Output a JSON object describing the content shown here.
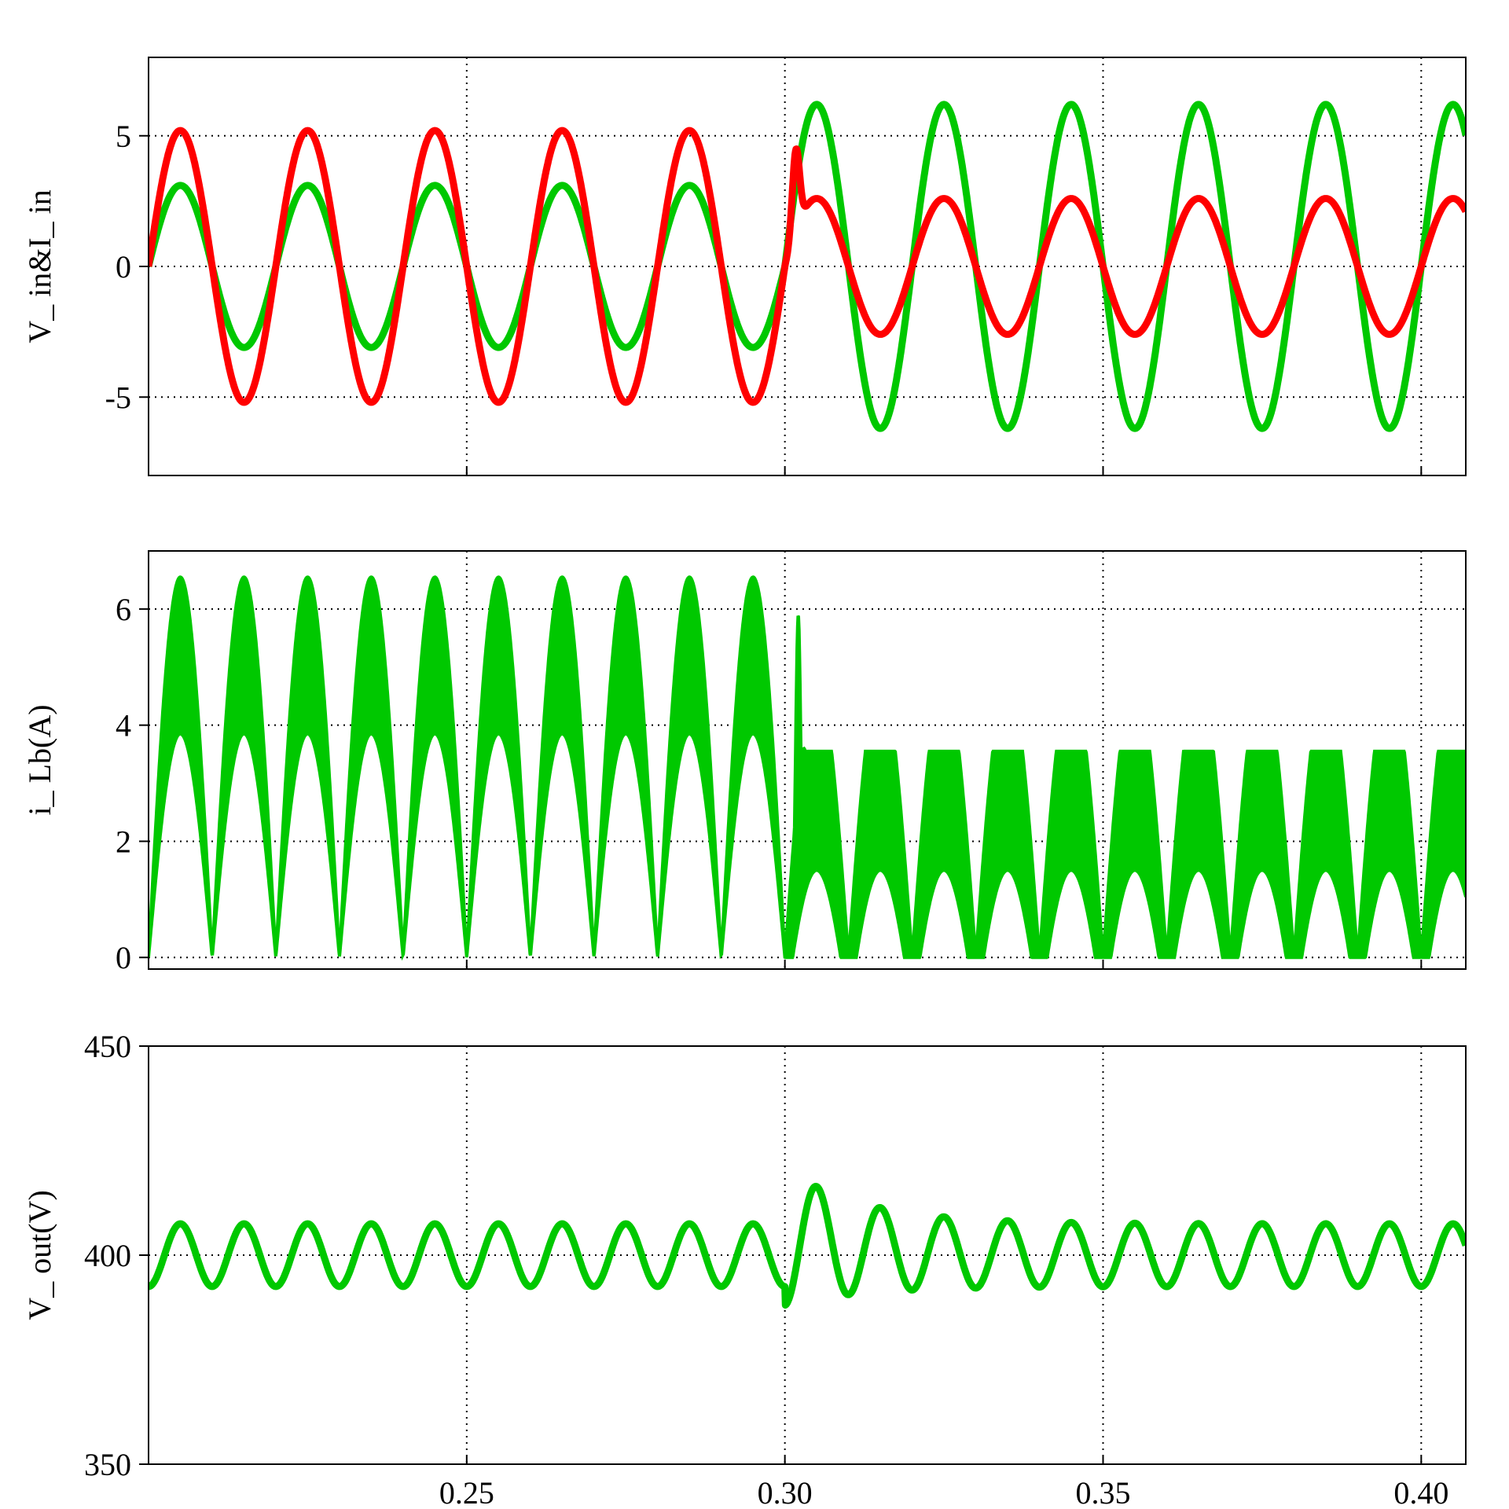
{
  "colors": {
    "green": "#00c800",
    "red": "#ff0000",
    "grid": "#000000",
    "axis": "#000000"
  },
  "x_axis": {
    "xlim": [
      0.2,
      0.407
    ],
    "ticks": [
      0.25,
      0.3,
      0.35,
      0.4
    ],
    "tick_labels": [
      "0.25",
      "0.30",
      "0.35",
      "0.40"
    ]
  },
  "chart_data": [
    {
      "type": "line",
      "ylabel": "V_ in&I_ in",
      "ylim": [
        -8,
        8
      ],
      "yticks": [
        -5,
        0,
        5
      ],
      "ytick_labels": [
        "-5",
        "0",
        "5"
      ],
      "grid": true,
      "series": [
        {
          "color_key": "green",
          "frequency_hz": 50,
          "segments": [
            {
              "t_start": 0.2,
              "t_end": 0.3,
              "amplitude": 3.1
            },
            {
              "t_start": 0.3,
              "t_end": 0.407,
              "amplitude": 6.2
            }
          ]
        },
        {
          "color_key": "red",
          "frequency_hz": 50,
          "segments": [
            {
              "t_start": 0.2,
              "t_end": 0.3,
              "amplitude": 5.2
            },
            {
              "t_start": 0.3,
              "t_end": 0.407,
              "amplitude": 2.6
            }
          ],
          "transient_peak": {
            "t": 0.3018,
            "value": 4.5
          }
        }
      ]
    },
    {
      "type": "area",
      "ylabel": "i_ Lb(A)",
      "ylim": [
        -0.2,
        7
      ],
      "yticks": [
        0,
        2,
        4,
        6
      ],
      "ytick_labels": [
        "0",
        "2",
        "4",
        "6"
      ],
      "grid": true,
      "series": [
        {
          "color_key": "green",
          "rectified_frequency_hz": 100,
          "segments": [
            {
              "t_start": 0.2,
              "t_end": 0.3,
              "upper_peak": 6.55,
              "lower_peak": 3.85
            },
            {
              "t_start": 0.3,
              "t_end": 0.407,
              "upper_peak": 3.55,
              "lower_peak": 1.5
            }
          ],
          "transient_peak": {
            "t": 0.3021,
            "value": 5.9
          }
        }
      ]
    },
    {
      "type": "line",
      "ylabel": "V_ out(V)",
      "ylim": [
        350,
        450
      ],
      "yticks": [
        350,
        400,
        450
      ],
      "ytick_labels": [
        "350",
        "400",
        "450"
      ],
      "grid": true,
      "series": [
        {
          "color_key": "green",
          "dc_value": 400,
          "ripple_frequency_hz": 100,
          "segments": [
            {
              "t_start": 0.2,
              "t_end": 0.3,
              "ripple_amplitude": 7.5
            }
          ],
          "transient_peak": {
            "t": 0.3075,
            "value": 417
          }
        }
      ]
    }
  ]
}
